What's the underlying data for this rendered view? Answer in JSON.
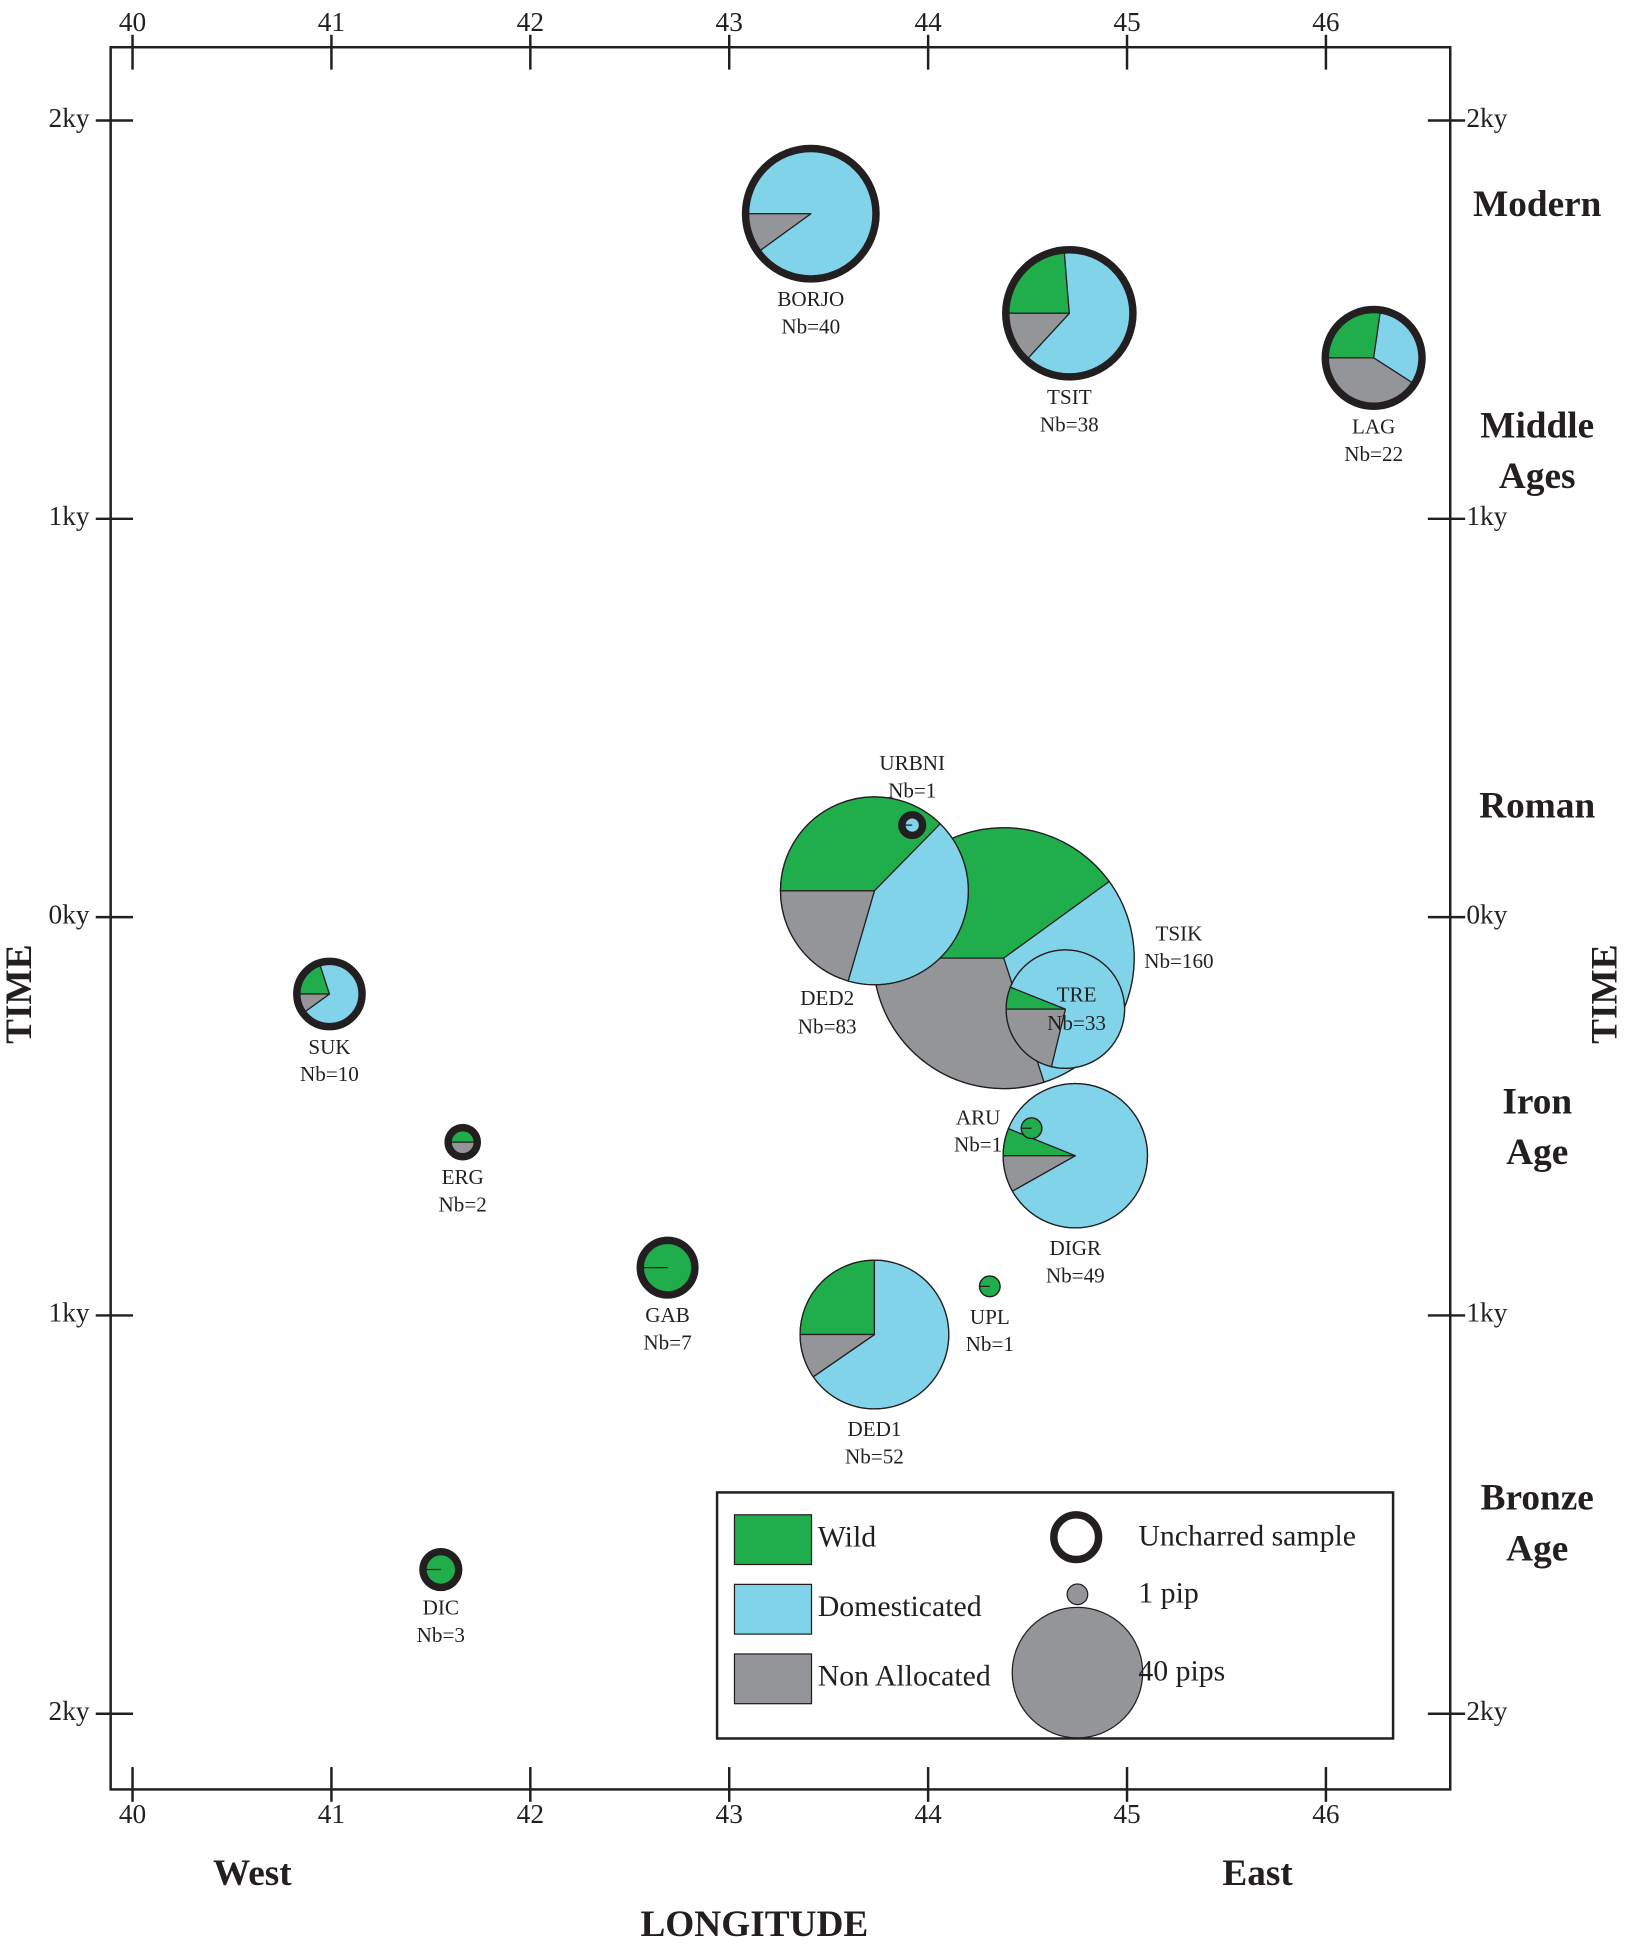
{
  "chart_data": {
    "type": "pie-scatter",
    "x_label": "LONGITUDE",
    "y_label": "TIME",
    "x_annotations": [
      "West",
      "East"
    ],
    "periods": [
      [
        "Modern"
      ],
      [
        "Middle",
        "Ages"
      ],
      [
        "Roman"
      ],
      [
        "Iron",
        "Age"
      ],
      [
        "Bronze",
        "Age"
      ]
    ],
    "xlim": [
      39.89,
      46.625
    ],
    "xticks": [
      40,
      41,
      42,
      43,
      44,
      45,
      46
    ],
    "ylim": [
      -2190,
      2184
    ],
    "yticks": [
      {
        "value": 2000,
        "label": "2ky"
      },
      {
        "value": 1000,
        "label": "1ky"
      },
      {
        "value": 0,
        "label": "0ky"
      },
      {
        "value": -1000,
        "label": "1ky"
      },
      {
        "value": -2000,
        "label": "2ky"
      }
    ],
    "series": [
      {
        "name": "Wild",
        "color": "#1fae4b"
      },
      {
        "name": "Domesticated",
        "color": "#80d3e8"
      },
      {
        "name": "Non Allocated",
        "color": "#939598"
      }
    ],
    "uncharred_label": "Uncharred sample",
    "size_legend": [
      {
        "value": 1,
        "label": "1 pip"
      },
      {
        "value": 40,
        "label": "40 pips"
      }
    ],
    "sites": [
      {
        "name": "BORJO",
        "nb_label": "Nb=40",
        "x": 43.41,
        "y": 1766,
        "counts": [
          0,
          36,
          4
        ],
        "uncharred": true
      },
      {
        "name": "TSIT",
        "nb_label": "Nb=38",
        "x": 44.71,
        "y": 1516,
        "counts": [
          9,
          24,
          5
        ],
        "uncharred": true
      },
      {
        "name": "LAG",
        "nb_label": "Nb=22",
        "x": 46.24,
        "y": 1404,
        "counts": [
          6,
          7,
          9
        ],
        "uncharred": true
      },
      {
        "name": "TSIK",
        "nb_label": "Nb=160",
        "x": 44.38,
        "y": -103,
        "counts": [
          64,
          48,
          48
        ],
        "uncharred": false
      },
      {
        "name": "DED2",
        "nb_label": "Nb=83",
        "x": 43.73,
        "y": 66,
        "counts": [
          31,
          35,
          17
        ],
        "uncharred": false
      },
      {
        "name": "URBNI",
        "nb_label": "Nb=1",
        "x": 43.92,
        "y": 231,
        "counts": [
          0,
          1,
          0
        ],
        "uncharred": true
      },
      {
        "name": "TRE",
        "nb_label": "Nb=33",
        "x": 44.69,
        "y": -231,
        "counts": [
          2,
          24,
          7
        ],
        "uncharred": false
      },
      {
        "name": "SUK",
        "nb_label": "Nb=10",
        "x": 40.99,
        "y": -193,
        "counts": [
          2,
          7,
          1
        ],
        "uncharred": true
      },
      {
        "name": "ERG",
        "nb_label": "Nb=2",
        "x": 41.66,
        "y": -565,
        "counts": [
          1,
          0,
          1
        ],
        "uncharred": true
      },
      {
        "name": "DIGR",
        "nb_label": "Nb=49",
        "x": 44.74,
        "y": -599,
        "counts": [
          3,
          42,
          4
        ],
        "uncharred": false
      },
      {
        "name": "ARU",
        "nb_label": "Nb=1",
        "x": 44.52,
        "y": -530,
        "counts": [
          1,
          0,
          0
        ],
        "uncharred": false
      },
      {
        "name": "GAB",
        "nb_label": "Nb=7",
        "x": 42.69,
        "y": -880,
        "counts": [
          7,
          0,
          0
        ],
        "uncharred": true
      },
      {
        "name": "UPL",
        "nb_label": "Nb=1",
        "x": 44.31,
        "y": -927,
        "counts": [
          1,
          0,
          0
        ],
        "uncharred": false
      },
      {
        "name": "DED1",
        "nb_label": "Nb=52",
        "x": 43.73,
        "y": -1048,
        "counts": [
          13,
          34,
          5
        ],
        "uncharred": false
      },
      {
        "name": "DIC",
        "nb_label": "Nb=3",
        "x": 41.55,
        "y": -1638,
        "counts": [
          3,
          0,
          0
        ],
        "uncharred": true
      }
    ]
  }
}
